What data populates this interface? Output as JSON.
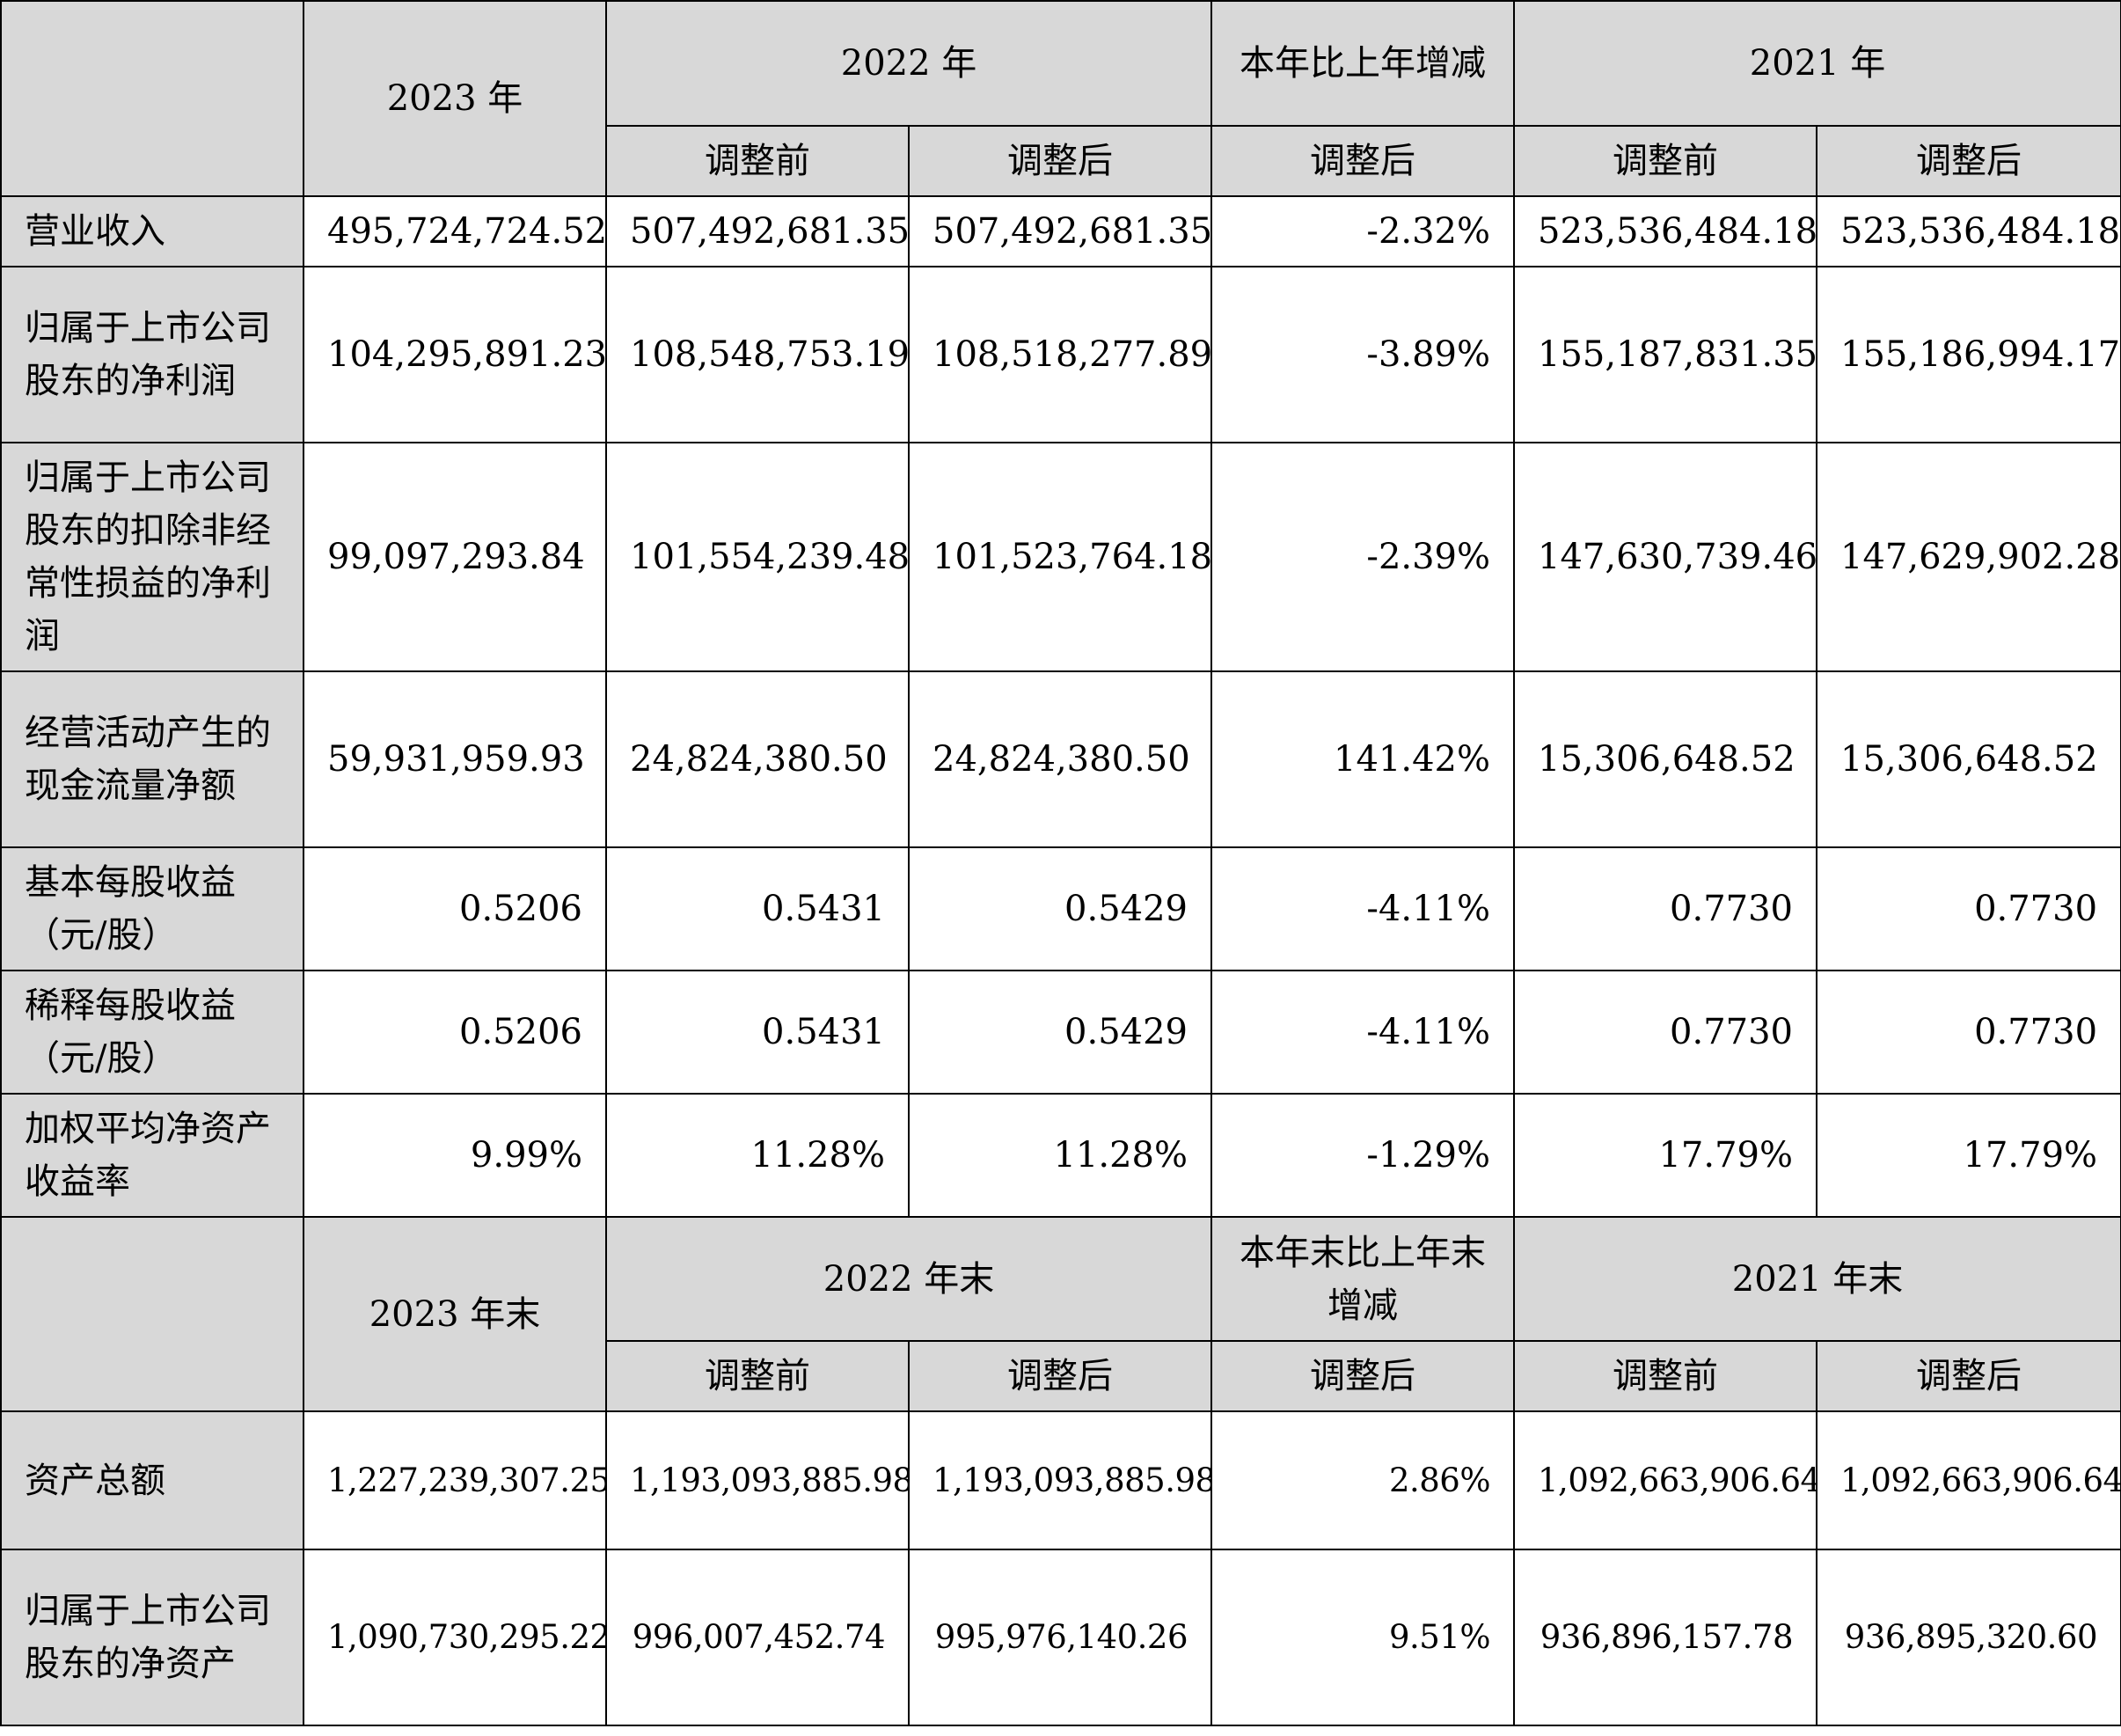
{
  "section1": {
    "header": {
      "y2023": "2023 年",
      "y2022": "2022 年",
      "change": "本年比上年增减",
      "y2021": "2021 年",
      "before": "调整前",
      "after": "调整后"
    },
    "rows": [
      {
        "label": "营业收入",
        "values": [
          "495,724,724.52",
          "507,492,681.35",
          "507,492,681.35",
          "-2.32%",
          "523,536,484.18",
          "523,536,484.18"
        ]
      },
      {
        "label": "归属于上市公司股东的净利润",
        "values": [
          "104,295,891.23",
          "108,548,753.19",
          "108,518,277.89",
          "-3.89%",
          "155,187,831.35",
          "155,186,994.17"
        ]
      },
      {
        "label": "归属于上市公司股东的扣除非经常性损益的净利润",
        "values": [
          "99,097,293.84",
          "101,554,239.48",
          "101,523,764.18",
          "-2.39%",
          "147,630,739.46",
          "147,629,902.28"
        ]
      },
      {
        "label": "经营活动产生的现金流量净额",
        "values": [
          "59,931,959.93",
          "24,824,380.50",
          "24,824,380.50",
          "141.42%",
          "15,306,648.52",
          "15,306,648.52"
        ]
      },
      {
        "label": "基本每股收益（元/股）",
        "values": [
          "0.5206",
          "0.5431",
          "0.5429",
          "-4.11%",
          "0.7730",
          "0.7730"
        ]
      },
      {
        "label": "稀释每股收益（元/股）",
        "values": [
          "0.5206",
          "0.5431",
          "0.5429",
          "-4.11%",
          "0.7730",
          "0.7730"
        ]
      },
      {
        "label": "加权平均净资产收益率",
        "values": [
          "9.99%",
          "11.28%",
          "11.28%",
          "-1.29%",
          "17.79%",
          "17.79%"
        ]
      }
    ]
  },
  "section2": {
    "header": {
      "y2023": "2023 年末",
      "y2022": "2022 年末",
      "change": "本年末比上年末增减",
      "y2021": "2021 年末",
      "before": "调整前",
      "after": "调整后"
    },
    "rows": [
      {
        "label": "资产总额",
        "values": [
          "1,227,239,307.25",
          "1,193,093,885.98",
          "1,193,093,885.98",
          "2.86%",
          "1,092,663,906.64",
          "1,092,663,906.64"
        ]
      },
      {
        "label": "归属于上市公司股东的净资产",
        "values": [
          "1,090,730,295.22",
          "996,007,452.74",
          "995,976,140.26",
          "9.51%",
          "936,896,157.78",
          "936,895,320.60"
        ]
      }
    ]
  }
}
